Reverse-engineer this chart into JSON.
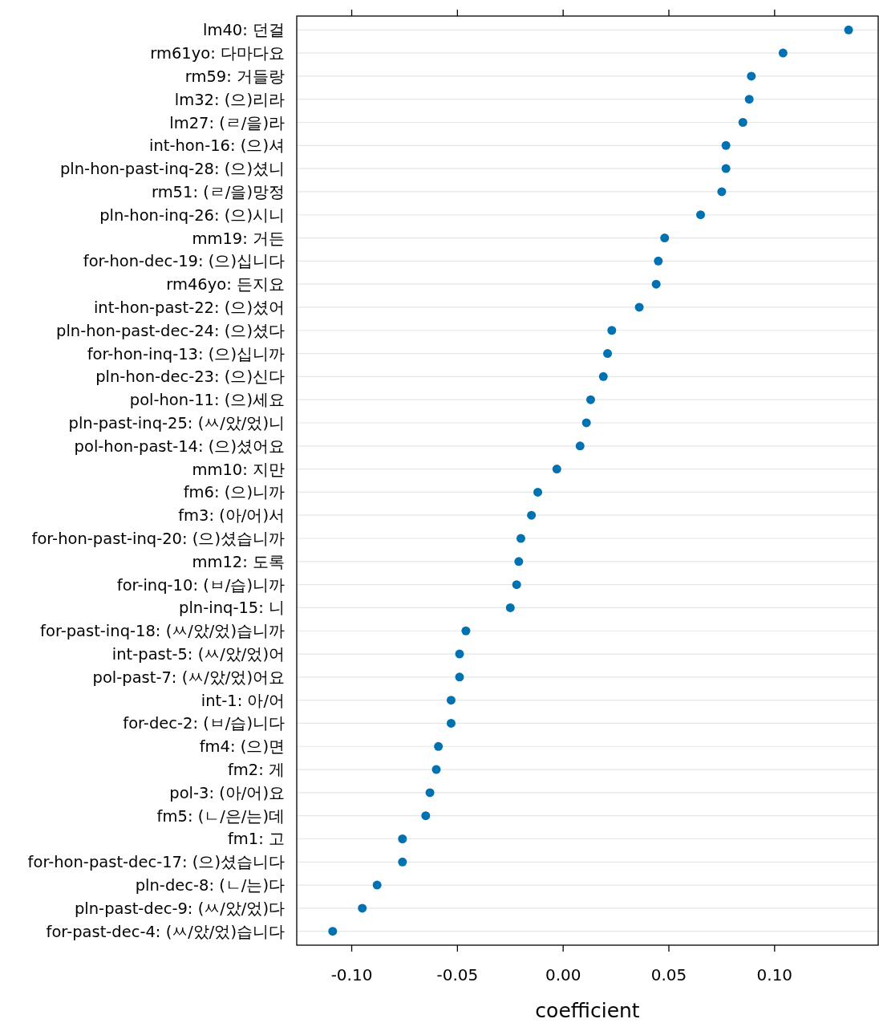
{
  "chart_data": {
    "type": "scatter",
    "orientation": "horizontal",
    "xlabel": "coefficient",
    "categories": [
      "lm40: 던걸",
      "rm61yo: 다마다요",
      "rm59: 거들랑",
      "lm32: (으)리라",
      "lm27: (ㄹ/을)라",
      "int-hon-16: (으)셔",
      "pln-hon-past-inq-28: (으)셨니",
      "rm51: (ㄹ/을)망정",
      "pln-hon-inq-26: (으)시니",
      "mm19: 거든",
      "for-hon-dec-19: (으)십니다",
      "rm46yo: 든지요",
      "int-hon-past-22: (으)셨어",
      "pln-hon-past-dec-24: (으)셨다",
      "for-hon-inq-13: (으)십니까",
      "pln-hon-dec-23: (으)신다",
      "pol-hon-11: (으)세요",
      "pln-past-inq-25: (ㅆ/았/었)니",
      "pol-hon-past-14: (으)셨어요",
      "mm10: 지만",
      "fm6: (으)니까",
      "fm3: (아/어)서",
      "for-hon-past-inq-20: (으)셨습니까",
      "mm12: 도록",
      "for-inq-10: (ㅂ/습)니까",
      "pln-inq-15: 니",
      "for-past-inq-18: (ㅆ/았/었)습니까",
      "int-past-5: (ㅆ/았/었)어",
      "pol-past-7: (ㅆ/았/었)어요",
      "int-1: 아/어",
      "for-dec-2: (ㅂ/습)니다",
      "fm4: (으)면",
      "fm2: 게",
      "pol-3: (아/어)요",
      "fm5: (ㄴ/은/는)데",
      "fm1: 고",
      "for-hon-past-dec-17: (으)셨습니다",
      "pln-dec-8: (ㄴ/는)다",
      "pln-past-dec-9: (ㅆ/았/었)다",
      "for-past-dec-4: (ㅆ/았/었)습니다"
    ],
    "series": [
      {
        "color": "#0072b2",
        "values": [
          0.135,
          0.104,
          0.089,
          0.088,
          0.085,
          0.077,
          0.077,
          0.075,
          0.065,
          0.048,
          0.045,
          0.044,
          0.036,
          0.023,
          0.021,
          0.019,
          0.013,
          0.011,
          0.008,
          -0.003,
          -0.012,
          -0.015,
          -0.02,
          -0.021,
          -0.022,
          -0.025,
          -0.046,
          -0.049,
          -0.049,
          -0.053,
          -0.053,
          -0.059,
          -0.06,
          -0.063,
          -0.065,
          -0.076,
          -0.076,
          -0.088,
          -0.095,
          -0.109
        ]
      }
    ],
    "xlim": [
      -0.126,
      0.149
    ],
    "xticks": [
      {
        "value": -0.1,
        "label": "-0.10"
      },
      {
        "value": -0.05,
        "label": "-0.05"
      },
      {
        "value": 0,
        "label": "0.00"
      },
      {
        "value": 0.05,
        "label": "0.05"
      },
      {
        "value": 0.1,
        "label": "0.10"
      }
    ],
    "grid": "y",
    "marker": "circle"
  }
}
